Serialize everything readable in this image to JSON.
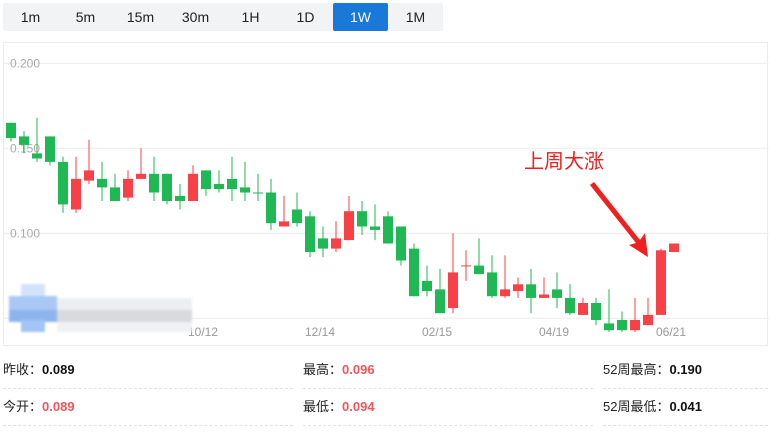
{
  "tabs": [
    {
      "label": "1m"
    },
    {
      "label": "5m"
    },
    {
      "label": "15m"
    },
    {
      "label": "30m"
    },
    {
      "label": "1H"
    },
    {
      "label": "1D"
    },
    {
      "label": "1W",
      "active": true
    },
    {
      "label": "1M"
    }
  ],
  "annotation": {
    "text": "上周大涨",
    "color": "#f02020"
  },
  "colors": {
    "up": "#f84146",
    "down": "#1fb855",
    "grid": "#ececec",
    "active_tab": "#1a78d8"
  },
  "stats": [
    [
      {
        "label": "昨收：",
        "value": "0.089",
        "color": "black"
      },
      {
        "label": "最高：",
        "value": "0.096",
        "color": "red"
      },
      {
        "label": "52周最高：",
        "value": "0.190",
        "color": "black"
      }
    ],
    [
      {
        "label": "今开：",
        "value": "0.089",
        "color": "red"
      },
      {
        "label": "最低：",
        "value": "0.094",
        "color": "red"
      },
      {
        "label": "52周最低：",
        "value": "0.041",
        "color": "black"
      }
    ]
  ],
  "chart_data": {
    "type": "candlestick",
    "ylim": [
      0.05,
      0.2
    ],
    "yticks": [
      "0.200",
      "0.150",
      "0.100"
    ],
    "grid": true,
    "xtick_labels": [
      {
        "index": 15,
        "label": "10/12"
      },
      {
        "index": 24,
        "label": "12/14"
      },
      {
        "index": 33,
        "label": "02/15"
      },
      {
        "index": 42,
        "label": "04/19"
      },
      {
        "index": 51,
        "label": "06/21"
      }
    ],
    "candles": [
      [
        0.165,
        0.165,
        0.154,
        0.156
      ],
      [
        0.157,
        0.16,
        0.147,
        0.152
      ],
      [
        0.147,
        0.168,
        0.142,
        0.144
      ],
      [
        0.157,
        0.157,
        0.14,
        0.142
      ],
      [
        0.142,
        0.145,
        0.112,
        0.117
      ],
      [
        0.114,
        0.145,
        0.112,
        0.132
      ],
      [
        0.131,
        0.155,
        0.129,
        0.137
      ],
      [
        0.132,
        0.142,
        0.119,
        0.127
      ],
      [
        0.127,
        0.135,
        0.119,
        0.119
      ],
      [
        0.121,
        0.137,
        0.119,
        0.132
      ],
      [
        0.132,
        0.15,
        0.132,
        0.135
      ],
      [
        0.135,
        0.145,
        0.119,
        0.124
      ],
      [
        0.135,
        0.135,
        0.117,
        0.119
      ],
      [
        0.122,
        0.129,
        0.114,
        0.119
      ],
      [
        0.119,
        0.14,
        0.119,
        0.135
      ],
      [
        0.137,
        0.137,
        0.122,
        0.126
      ],
      [
        0.129,
        0.137,
        0.124,
        0.126
      ],
      [
        0.132,
        0.145,
        0.119,
        0.126
      ],
      [
        0.127,
        0.142,
        0.119,
        0.124
      ],
      [
        0.124,
        0.135,
        0.119,
        0.124
      ],
      [
        0.124,
        0.132,
        0.102,
        0.106
      ],
      [
        0.104,
        0.122,
        0.104,
        0.107
      ],
      [
        0.114,
        0.124,
        0.104,
        0.106
      ],
      [
        0.11,
        0.113,
        0.086,
        0.089
      ],
      [
        0.097,
        0.104,
        0.086,
        0.091
      ],
      [
        0.091,
        0.107,
        0.089,
        0.097
      ],
      [
        0.096,
        0.122,
        0.096,
        0.113
      ],
      [
        0.113,
        0.119,
        0.099,
        0.104
      ],
      [
        0.104,
        0.117,
        0.096,
        0.102
      ],
      [
        0.11,
        0.113,
        0.094,
        0.094
      ],
      [
        0.104,
        0.104,
        0.081,
        0.084
      ],
      [
        0.091,
        0.094,
        0.063,
        0.063
      ],
      [
        0.072,
        0.081,
        0.063,
        0.066
      ],
      [
        0.067,
        0.079,
        0.053,
        0.053
      ],
      [
        0.056,
        0.1,
        0.053,
        0.077
      ],
      [
        0.081,
        0.09,
        0.072,
        0.0811
      ],
      [
        0.081,
        0.097,
        0.076,
        0.076
      ],
      [
        0.077,
        0.087,
        0.062,
        0.063
      ],
      [
        0.063,
        0.087,
        0.062,
        0.067
      ],
      [
        0.066,
        0.074,
        0.062,
        0.07
      ],
      [
        0.07,
        0.079,
        0.053,
        0.062
      ],
      [
        0.062,
        0.074,
        0.062,
        0.064
      ],
      [
        0.067,
        0.077,
        0.056,
        0.062
      ],
      [
        0.062,
        0.07,
        0.052,
        0.053
      ],
      [
        0.052,
        0.062,
        0.052,
        0.059
      ],
      [
        0.059,
        0.062,
        0.046,
        0.049
      ],
      [
        0.047,
        0.067,
        0.042,
        0.043
      ],
      [
        0.049,
        0.054,
        0.042,
        0.043
      ],
      [
        0.043,
        0.062,
        0.042,
        0.049
      ],
      [
        0.046,
        0.062,
        0.046,
        0.052
      ],
      [
        0.052,
        0.091,
        0.052,
        0.09
      ],
      [
        0.089,
        0.094,
        0.089,
        0.094
      ]
    ]
  }
}
